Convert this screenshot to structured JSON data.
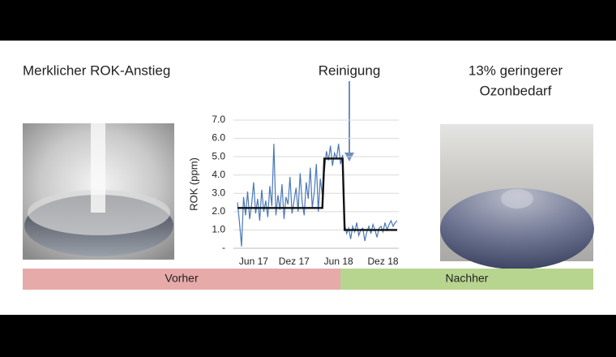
{
  "panels": {
    "left_caption": "Merklicher ROK-Anstieg",
    "right_caption_line1": "13% geringerer",
    "right_caption_line2": "Ozonbedarf",
    "before": "Vorher",
    "after": "Nachher"
  },
  "chart_data": {
    "type": "line",
    "annotation": "Reinigung",
    "y_label": "ROK (ppm)",
    "categories": [
      null,
      null,
      null,
      null,
      null,
      null,
      null,
      null,
      "Jun 17",
      null,
      null,
      null,
      null,
      null,
      null,
      null,
      null,
      null,
      null,
      null,
      null,
      null,
      null,
      null,
      null,
      null,
      null,
      null,
      "Dez 17",
      null,
      null,
      null,
      null,
      null,
      null,
      null,
      null,
      null,
      null,
      null,
      null,
      null,
      null,
      null,
      null,
      null,
      null,
      null,
      null,
      null,
      "Jun 18",
      null,
      null,
      null,
      null,
      null,
      null,
      null,
      null,
      null,
      null,
      null,
      null,
      null,
      null,
      null,
      null,
      null,
      null,
      null,
      null,
      null,
      "Dez 18",
      null,
      null,
      null,
      null,
      null,
      null,
      null
    ],
    "series": [
      {
        "name": null,
        "color": "#4a78b8",
        "values": [
          2.5,
          1.4,
          0.1,
          2.8,
          1.8,
          3.1,
          1.6,
          2.4,
          3.6,
          1.9,
          2.7,
          1.5,
          3.2,
          2.0,
          2.6,
          1.7,
          3.4,
          2.3,
          5.7,
          1.8,
          2.9,
          2.1,
          3.5,
          1.6,
          2.8,
          2.4,
          3.9,
          1.9,
          2.6,
          3.3,
          2.0,
          4.1,
          2.5,
          1.8,
          3.6,
          2.7,
          4.4,
          2.2,
          3.1,
          4.6,
          2.0,
          3.8,
          2.9,
          4.2,
          5.3,
          4.8,
          5.6,
          4.5,
          5.2,
          4.9,
          5.7,
          4.6,
          5.1,
          1.3,
          0.8,
          1.1,
          0.5,
          1.2,
          0.9,
          1.4,
          0.7,
          1.0,
          1.1,
          0.4,
          0.9,
          1.2,
          0.8,
          1.3,
          1.0,
          0.6,
          1.1,
          1.2,
          0.9,
          1.4,
          1.0,
          1.3,
          1.5,
          1.2,
          1.4,
          1.5
        ]
      },
      {
        "name": null,
        "color": "#111111",
        "values": [
          2.2,
          2.2,
          2.2,
          2.2,
          2.2,
          2.2,
          2.2,
          2.2,
          2.2,
          2.2,
          2.2,
          2.2,
          2.2,
          2.2,
          2.2,
          2.2,
          2.2,
          2.2,
          2.2,
          2.2,
          2.2,
          2.2,
          2.2,
          2.2,
          2.2,
          2.2,
          2.2,
          2.2,
          2.2,
          2.2,
          2.2,
          2.2,
          2.2,
          2.2,
          2.2,
          2.2,
          2.2,
          2.2,
          2.2,
          2.2,
          2.2,
          2.2,
          2.2,
          4.9,
          4.9,
          4.9,
          4.9,
          4.9,
          4.9,
          4.9,
          4.9,
          4.9,
          4.9,
          1.0,
          1.0,
          1.0,
          1.0,
          1.0,
          1.0,
          1.0,
          1.0,
          1.0,
          1.0,
          1.0,
          1.0,
          1.0,
          1.0,
          1.0,
          1.0,
          1.0,
          1.0,
          1.0,
          1.0,
          1.0,
          1.0,
          1.0,
          1.0,
          1.0,
          1.0,
          1.0
        ]
      }
    ],
    "ylim": [
      0,
      7
    ],
    "yticks": [
      {
        "value": 0,
        "label": "-"
      },
      {
        "value": 1,
        "label": "1.0"
      },
      {
        "value": 2,
        "label": "2.0"
      },
      {
        "value": 3,
        "label": "3.0"
      },
      {
        "value": 4,
        "label": "4.0"
      },
      {
        "value": 5,
        "label": "5.0"
      },
      {
        "value": 6,
        "label": "6.0"
      },
      {
        "value": 7,
        "label": "7.0"
      }
    ],
    "grid": true
  }
}
